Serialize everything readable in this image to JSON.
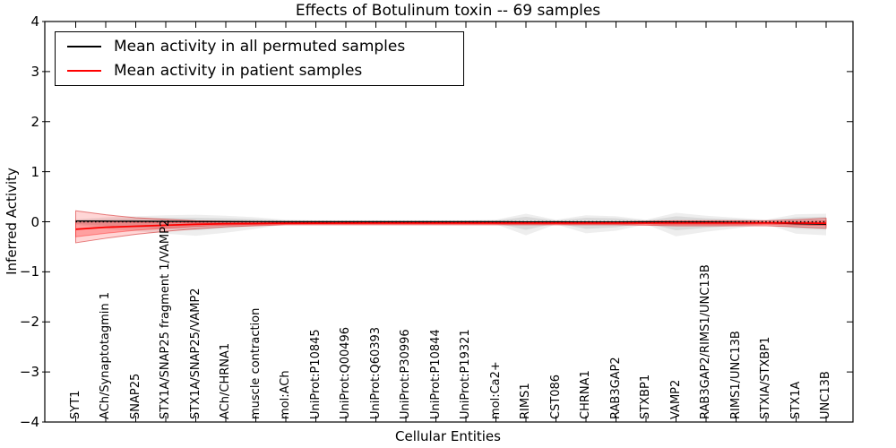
{
  "chart_data": {
    "type": "line",
    "title": "Effects of Botulinum toxin -- 69 samples",
    "xlabel": "Cellular Entities",
    "ylabel": "Inferred Activity",
    "ylim": [
      -4,
      4
    ],
    "yticks": [
      4,
      3,
      2,
      1,
      0,
      -1,
      -2,
      -3,
      -4
    ],
    "ytick_labels": [
      "4",
      "3",
      "2",
      "1",
      "0",
      "−1",
      "−2",
      "−3",
      "−4"
    ],
    "grid": false,
    "legend_position": "upper left",
    "categories": [
      "SYT1",
      "ACh/Synaptotagmin 1",
      "SNAP25",
      "STX1A/SNAP25 fragment 1/VAMP2",
      "STX1A/SNAP25/VAMP2",
      "ACh/CHRNA1",
      "muscle contraction",
      "mol:ACh",
      "UniProt:P10845",
      "UniProt:Q00496",
      "UniProt:Q60393",
      "UniProt:P30996",
      "UniProt:P10844",
      "UniProt:P19321",
      "mol:Ca2+",
      "RIMS1",
      "CST086",
      "CHRNA1",
      "RAB3GAP2",
      "STXBP1",
      "VAMP2",
      "RAB3GAP2/RIMS1/UNC13B",
      "RIMS1/UNC13B",
      "STXIA/STXBP1",
      "STX1A",
      "UNC13B"
    ],
    "series": [
      {
        "name": "Mean activity in all permuted samples",
        "color": "#000000",
        "style": "solid",
        "values": [
          0.015,
          0.012,
          0.01,
          0.008,
          0.005,
          0.003,
          0.002,
          0.001,
          0.001,
          0.001,
          0.001,
          0.001,
          0.001,
          0.001,
          0.001,
          -0.003,
          0,
          -0.004,
          -0.004,
          0,
          -0.006,
          -0.004,
          -0.01,
          -0.02,
          -0.04,
          -0.05
        ]
      },
      {
        "name": "Mean activity in patient samples",
        "color": "#ff0000",
        "style": "solid",
        "values": [
          -0.15,
          -0.11,
          -0.09,
          -0.07,
          -0.05,
          -0.04,
          -0.035,
          -0.03,
          -0.028,
          -0.026,
          -0.025,
          -0.025,
          -0.025,
          -0.025,
          -0.025,
          -0.025,
          -0.025,
          -0.025,
          -0.025,
          -0.025,
          -0.025,
          -0.025,
          -0.025,
          -0.025,
          -0.025,
          -0.03
        ]
      }
    ],
    "reference_line": {
      "y": 0,
      "style": "dotted",
      "color": "#000000"
    },
    "bands": [
      {
        "name": "permuted-samples-outer-band",
        "fill": "rgba(120,120,120,0.13)",
        "upper": [
          0.05,
          0.09,
          0.11,
          0.13,
          0.14,
          0.12,
          0.09,
          0.04,
          0.03,
          0.03,
          0.03,
          0.03,
          0.03,
          0.03,
          0.04,
          0.16,
          0.04,
          0.13,
          0.11,
          0.04,
          0.18,
          0.12,
          0.08,
          0.04,
          0.15,
          0.16
        ],
        "lower": [
          -0.06,
          -0.14,
          -0.19,
          -0.24,
          -0.28,
          -0.22,
          -0.14,
          -0.05,
          -0.04,
          -0.04,
          -0.04,
          -0.04,
          -0.04,
          -0.04,
          -0.05,
          -0.27,
          -0.05,
          -0.23,
          -0.18,
          -0.05,
          -0.29,
          -0.2,
          -0.13,
          -0.05,
          -0.24,
          -0.27
        ]
      },
      {
        "name": "permuted-samples-inner-band",
        "fill": "rgba(120,120,120,0.16)",
        "upper": [
          0.03,
          0.05,
          0.07,
          0.08,
          0.08,
          0.07,
          0.05,
          0.02,
          0.02,
          0.02,
          0.02,
          0.02,
          0.02,
          0.02,
          0.02,
          0.1,
          0.02,
          0.08,
          0.07,
          0.02,
          0.11,
          0.07,
          0.05,
          0.02,
          0.09,
          0.1
        ],
        "lower": [
          -0.04,
          -0.08,
          -0.11,
          -0.14,
          -0.17,
          -0.13,
          -0.08,
          -0.03,
          -0.02,
          -0.02,
          -0.02,
          -0.02,
          -0.02,
          -0.02,
          -0.03,
          -0.16,
          -0.03,
          -0.14,
          -0.11,
          -0.03,
          -0.17,
          -0.12,
          -0.08,
          -0.03,
          -0.14,
          -0.16
        ]
      },
      {
        "name": "patient-samples-outer-band",
        "fill": "rgba(255,0,0,0.16)",
        "stroke": "rgba(210,30,30,0.55)",
        "upper": [
          0.22,
          0.14,
          0.08,
          0.05,
          0.02,
          0.01,
          0,
          0,
          0,
          0,
          0,
          0,
          0,
          0,
          0,
          0,
          0,
          0,
          0,
          0.01,
          0.02,
          0.02,
          0.02,
          0.02,
          0.04,
          0.07
        ],
        "lower": [
          -0.42,
          -0.33,
          -0.25,
          -0.19,
          -0.14,
          -0.1,
          -0.08,
          -0.06,
          -0.06,
          -0.06,
          -0.06,
          -0.06,
          -0.06,
          -0.06,
          -0.06,
          -0.06,
          -0.06,
          -0.06,
          -0.06,
          -0.07,
          -0.08,
          -0.08,
          -0.08,
          -0.08,
          -0.1,
          -0.13
        ],
        "legend": "Mean activity in patient samples"
      },
      {
        "name": "patient-samples-inner-band",
        "fill": "rgba(255,0,0,0.25)",
        "stroke": "rgba(255,0,0,0.35)",
        "upper": [
          0.02,
          0.005,
          -0.005,
          -0.01,
          -0.015,
          -0.015,
          -0.02,
          -0.015,
          -0.015,
          -0.015,
          -0.015,
          -0.015,
          -0.015,
          -0.015,
          -0.015,
          -0.015,
          -0.015,
          -0.015,
          -0.015,
          -0.01,
          -0.005,
          -0.005,
          -0.005,
          -0.005,
          0.005,
          0.02
        ],
        "lower": [
          -0.3,
          -0.23,
          -0.17,
          -0.13,
          -0.095,
          -0.07,
          -0.06,
          -0.045,
          -0.045,
          -0.045,
          -0.045,
          -0.045,
          -0.045,
          -0.045,
          -0.045,
          -0.045,
          -0.045,
          -0.045,
          -0.045,
          -0.05,
          -0.055,
          -0.055,
          -0.055,
          -0.055,
          -0.065,
          -0.08
        ]
      }
    ]
  }
}
